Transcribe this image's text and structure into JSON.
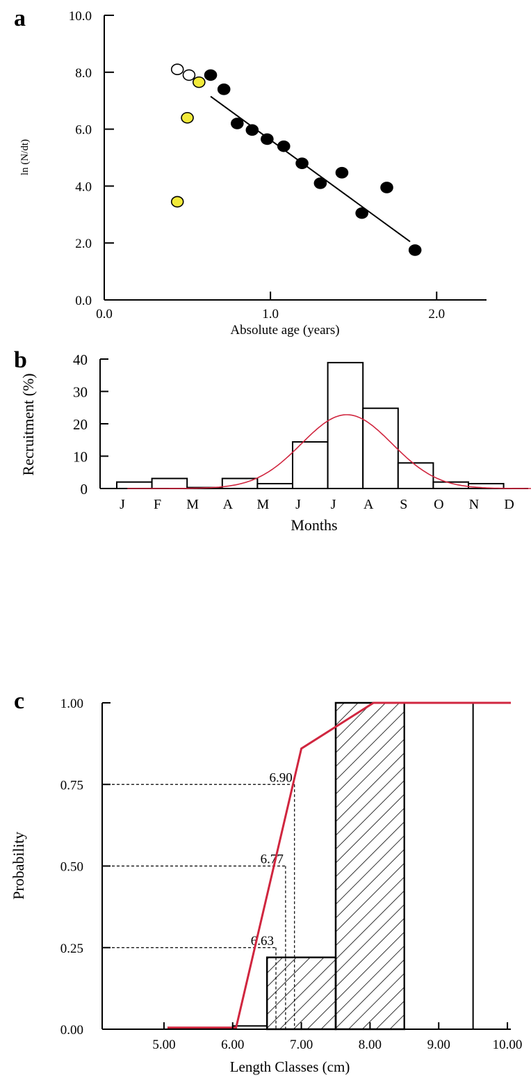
{
  "colors": {
    "axis": "#000000",
    "filled_point": "#000000",
    "yellow_point": "#f2ea3a",
    "open_point": "#ffffff",
    "curve": "#d0263f",
    "guide": "#000000"
  },
  "chart_data": [
    {
      "panel": "a",
      "type": "scatter",
      "xlabel": "Absolute age (years)",
      "ylabel": "ln (N/dt)",
      "xlim": [
        0.0,
        2.3
      ],
      "ylim": [
        0.0,
        10.0
      ],
      "x_ticks": [
        "0.0",
        "1.0",
        "2.0"
      ],
      "y_ticks": [
        "0.0",
        "2.0",
        "4.0",
        "6.0",
        "8.0",
        "10.0"
      ],
      "grid": false,
      "series": [
        {
          "style": "open",
          "points": [
            [
              0.44,
              8.1
            ],
            [
              0.51,
              7.9
            ]
          ]
        },
        {
          "style": "yellow",
          "points": [
            [
              0.57,
              7.65
            ],
            [
              0.5,
              6.4
            ],
            [
              0.44,
              3.45
            ]
          ]
        },
        {
          "style": "filled",
          "points": [
            [
              0.64,
              7.9
            ],
            [
              0.72,
              7.4
            ],
            [
              0.8,
              6.2
            ],
            [
              0.89,
              5.97
            ],
            [
              0.98,
              5.65
            ],
            [
              1.08,
              5.4
            ],
            [
              1.19,
              4.8
            ],
            [
              1.3,
              4.1
            ],
            [
              1.43,
              4.47
            ],
            [
              1.55,
              3.05
            ],
            [
              1.7,
              3.95
            ],
            [
              1.87,
              1.75
            ]
          ]
        }
      ],
      "fit_line": [
        [
          0.64,
          7.15
        ],
        [
          1.84,
          2.05
        ]
      ]
    },
    {
      "panel": "b",
      "type": "bar",
      "xlabel": "Months",
      "ylabel": "Recruitment (%)",
      "ylim": [
        0,
        40
      ],
      "y_ticks": [
        "0",
        "10",
        "20",
        "30",
        "40"
      ],
      "categories": [
        "J",
        "F",
        "M",
        "A",
        "M",
        "J",
        "J",
        "A",
        "S",
        "O",
        "N",
        "D"
      ],
      "values": [
        2.0,
        3.1,
        0.3,
        3.1,
        1.5,
        14.4,
        38.9,
        24.8,
        7.9,
        2.0,
        1.5,
        0
      ],
      "curve": {
        "type": "normal",
        "peak": 22.8,
        "mean_month_index": 6.54,
        "sd_months": 1.29
      }
    },
    {
      "panel": "c",
      "type": "bar",
      "xlabel": "Length Classes (cm)",
      "ylabel": "Probability",
      "xlim": [
        4.1,
        10.05
      ],
      "ylim": [
        0.0,
        1.0
      ],
      "x_ticks": [
        "5.00",
        "6.00",
        "7.00",
        "8.00",
        "9.00",
        "10.00"
      ],
      "y_ticks": [
        "0.00",
        "0.25",
        "0.50",
        "0.75",
        "1.00"
      ],
      "bars": [
        {
          "x0": 6.0,
          "x1": 6.5,
          "value": 0.01,
          "hatched": false
        },
        {
          "x0": 6.5,
          "x1": 7.5,
          "value": 0.22,
          "hatched": true
        },
        {
          "x0": 7.5,
          "x1": 8.5,
          "value": 1.0,
          "hatched": true
        },
        {
          "x0": 8.5,
          "x1": 9.5,
          "value": 1.0,
          "hatched": false
        }
      ],
      "ogive": [
        [
          5.05,
          0.005
        ],
        [
          6.05,
          0.005
        ],
        [
          7.0,
          0.86
        ],
        [
          8.05,
          1.0
        ],
        [
          10.05,
          1.0
        ]
      ],
      "guides": [
        {
          "p": 0.75,
          "length": 6.9,
          "label": "6.90"
        },
        {
          "p": 0.5,
          "length": 6.77,
          "label": "6.77"
        },
        {
          "p": 0.25,
          "length": 6.63,
          "label": "6.63"
        }
      ]
    }
  ],
  "panel_letters": [
    "a",
    "b",
    "c"
  ]
}
